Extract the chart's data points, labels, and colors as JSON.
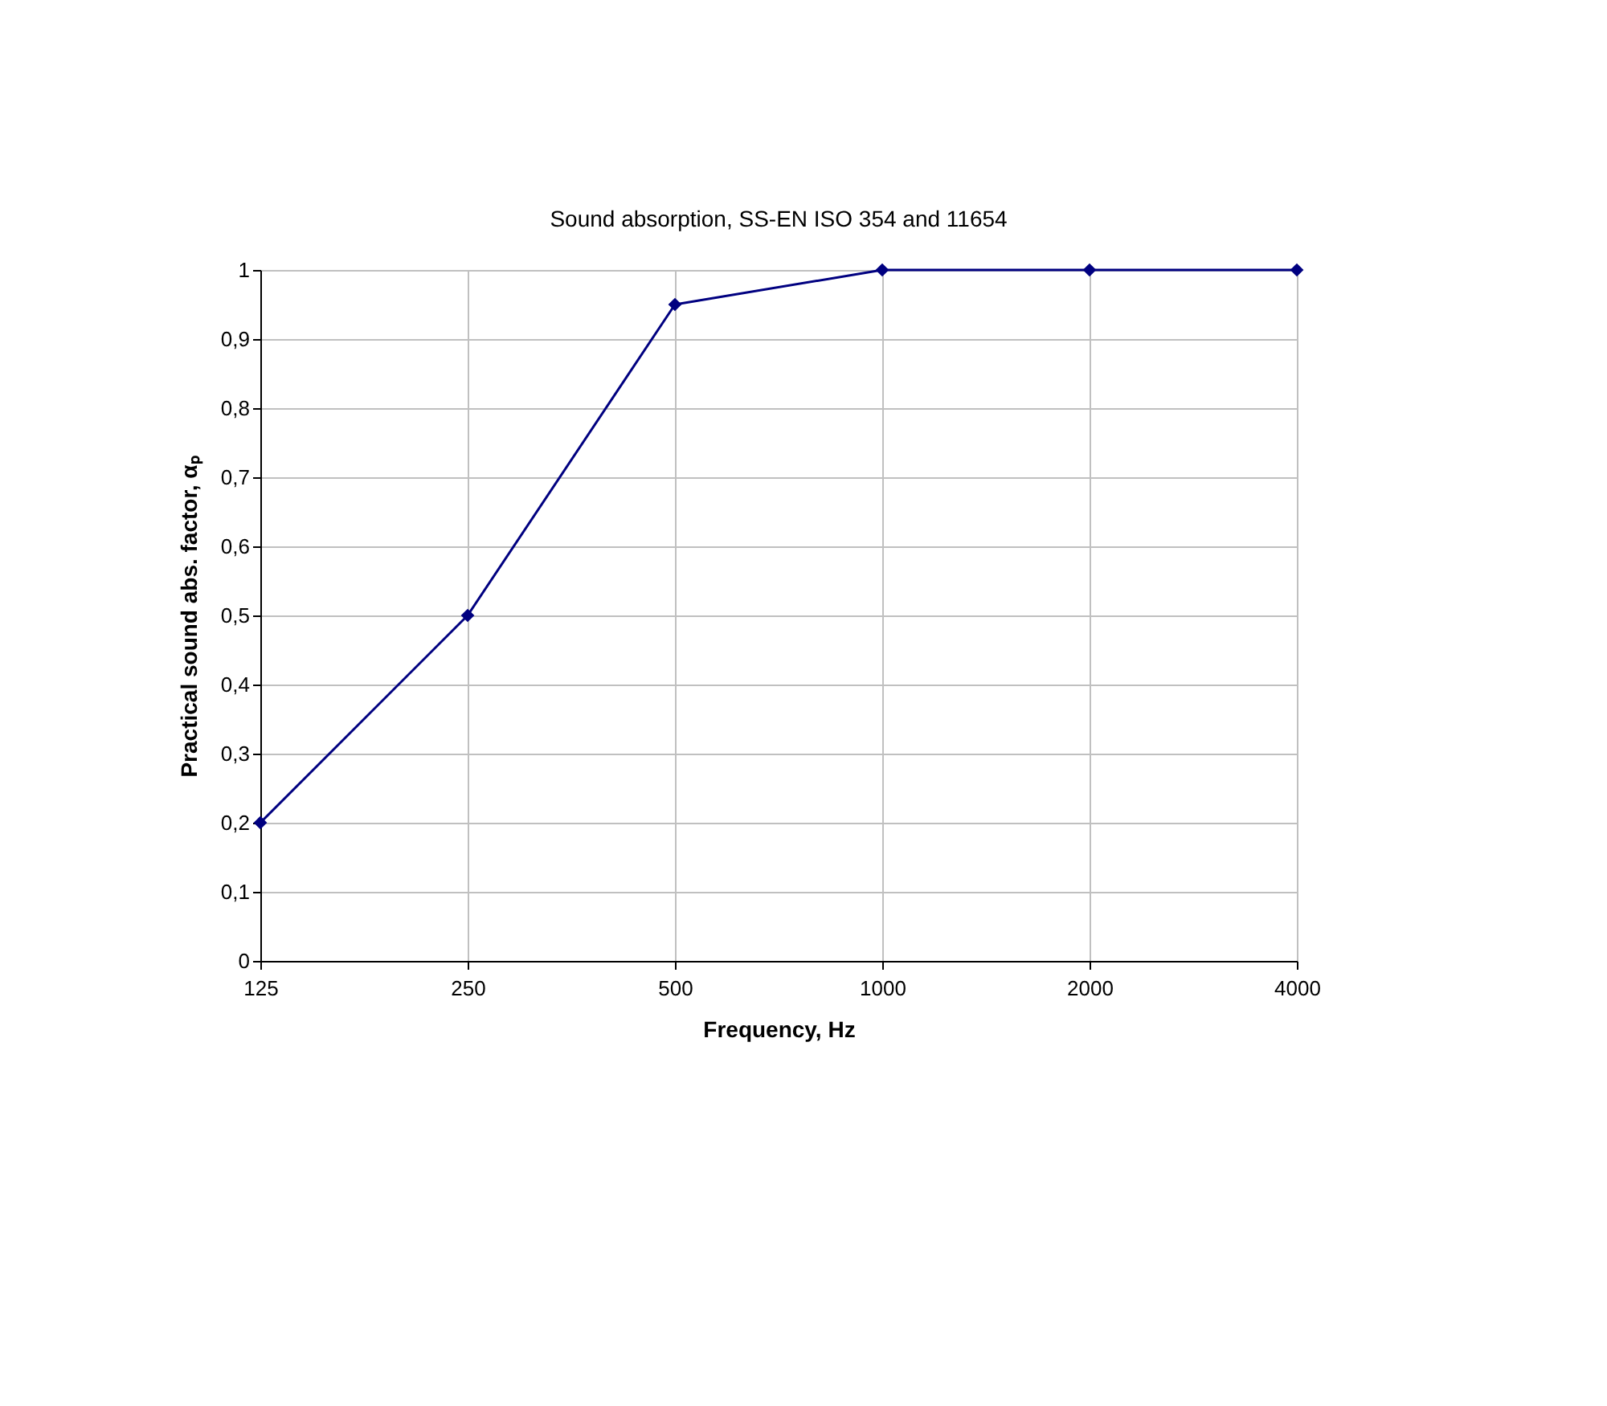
{
  "chart_data": {
    "type": "line",
    "title": "Sound absorption, SS-EN ISO 354 and 11654",
    "xlabel": "Frequency, Hz",
    "ylabel": "Practical sound abs. factor, αₚ",
    "categories": [
      "125",
      "250",
      "500",
      "1000",
      "2000",
      "4000"
    ],
    "series": [
      {
        "color": "#000080",
        "values": [
          0.2,
          0.5,
          0.95,
          1,
          1,
          1
        ]
      }
    ],
    "ylim": [
      0,
      1
    ],
    "yticks": [
      0,
      {
        "value": 0.1,
        "label": "0,1"
      },
      {
        "value": 0.2,
        "label": "0,2"
      },
      {
        "value": 0.3,
        "label": "0,3"
      },
      {
        "value": 0.4,
        "label": "0,4"
      },
      {
        "value": 0.5,
        "label": "0,5"
      },
      {
        "value": 0.6,
        "label": "0,6"
      },
      {
        "value": 0.7,
        "label": "0,7"
      },
      {
        "value": 0.8,
        "label": "0,8"
      },
      {
        "value": 0.9,
        "label": "0,9"
      },
      1
    ],
    "grid": true,
    "marker": "diamond",
    "line_style": "solid"
  }
}
